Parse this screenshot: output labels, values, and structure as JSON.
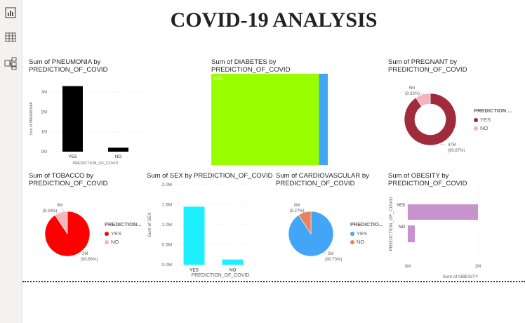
{
  "page": {
    "title": "COVID-19 ANALYSIS"
  },
  "nav": {
    "items": [
      {
        "icon": "report-icon"
      },
      {
        "icon": "table-icon"
      },
      {
        "icon": "model-icon"
      }
    ]
  },
  "colors": {
    "black": "#000000",
    "lime": "#99ff00",
    "blue": "#42a5f5",
    "maroon": "#a02b3a",
    "pink": "#f4b6bc",
    "red": "#ff0000",
    "cyan": "#1ef0ff",
    "orange": "#e8825f",
    "purple": "#c693cc"
  },
  "pneumonia": {
    "title_l1": "Sum of PNEUMONIA by",
    "title_l2": "PREDICTION_OF_COVID",
    "ylabel": "Sum of PNEUMONIA",
    "xlabel": "PREDICTION_OF_COVID"
  },
  "diabetes": {
    "title_l1": "Sum of DIABETES by",
    "title_l2": "PREDICTION_OF_COVID",
    "yes_label": "YES"
  },
  "pregnant": {
    "title_l1": "Sum of PREGNANT by",
    "title_l2": "PREDICTION_OF_COVID",
    "legend_title": "PREDICTION ...",
    "legend_yes": "YES",
    "legend_no": "NO",
    "lbl_big_1": "47M",
    "lbl_big_2": "(90.67%)",
    "lbl_small_1": "5M",
    "lbl_small_2": "(9.33%)"
  },
  "tobacco": {
    "title_l1": "Sum of TOBACCO by",
    "title_l2": "PREDICTION_OF_COVID",
    "legend_title": "PREDICTION...",
    "legend_yes": "YES",
    "legend_no": "NO",
    "lbl_big_1": "2M",
    "lbl_big_2": "(90.66%)",
    "lbl_small_1": "0M",
    "lbl_small_2": "(9.34%)"
  },
  "sex": {
    "title_l1": "Sum of SEX by PREDICTION_OF_COVID",
    "ylabel": "Sum of SEX",
    "xlabel": "PREDICTION_OF_COVID"
  },
  "cardio": {
    "title_l1": "Sum of CARDIOVASCULAR by",
    "title_l2": "PREDICTION_OF_COVID",
    "legend_title": "PREDICTIO...",
    "legend_yes": "YES",
    "legend_no": "NO",
    "lbl_big_1": "2M",
    "lbl_big_2": "(90.73%)",
    "lbl_small_1": "0M",
    "lbl_small_2": "(9.27%)"
  },
  "obesity": {
    "title_l1": "Sum of OBESITY by PREDICTION_OF_COVID",
    "ylabel": "PREDICTION_OF_COVID",
    "xlabel": "Sum of OBESITY"
  },
  "chart_data": [
    {
      "id": "pneumonia",
      "type": "bar",
      "title": "Sum of PNEUMONIA by PREDICTION_OF_COVID",
      "categories": [
        "YES",
        "NO"
      ],
      "values": [
        3.3,
        0.2
      ],
      "yticks": [
        "0M",
        "1M",
        "2M",
        "3M"
      ],
      "ylim": [
        0,
        3.5
      ],
      "xlabel": "PREDICTION_OF_COVID",
      "ylabel": "Sum of PNEUMONIA"
    },
    {
      "id": "diabetes",
      "type": "treemap",
      "title": "Sum of DIABETES by PREDICTION_OF_COVID",
      "categories": [
        "YES",
        "NO"
      ],
      "values": [
        92.5,
        7.5
      ]
    },
    {
      "id": "pregnant",
      "type": "pie",
      "donut": true,
      "title": "Sum of PREGNANT by PREDICTION_OF_COVID",
      "categories": [
        "YES",
        "NO"
      ],
      "values": [
        47,
        5
      ],
      "percent": [
        90.67,
        9.33
      ]
    },
    {
      "id": "tobacco",
      "type": "pie",
      "title": "Sum of TOBACCO by PREDICTION_OF_COVID",
      "categories": [
        "YES",
        "NO"
      ],
      "values": [
        2,
        0
      ],
      "percent": [
        90.66,
        9.34
      ]
    },
    {
      "id": "sex",
      "type": "bar",
      "title": "Sum of SEX by PREDICTION_OF_COVID",
      "categories": [
        "YES",
        "NO"
      ],
      "values": [
        1.45,
        0.13
      ],
      "yticks": [
        "0.0M",
        "0.5M",
        "1.0M",
        "1.5M",
        "2.0M"
      ],
      "ylim": [
        0,
        2.0
      ],
      "xlabel": "PREDICTION_OF_COVID",
      "ylabel": "Sum of SEX"
    },
    {
      "id": "cardio",
      "type": "pie",
      "title": "Sum of CARDIOVASCULAR by PREDICTION_OF_COVID",
      "categories": [
        "YES",
        "NO"
      ],
      "values": [
        2,
        0
      ],
      "percent": [
        90.73,
        9.27
      ]
    },
    {
      "id": "obesity",
      "type": "hbar",
      "title": "Sum of OBESITY by PREDICTION_OF_COVID",
      "categories": [
        "YES",
        "NO"
      ],
      "values": [
        2.0,
        0.2
      ],
      "xticks": [
        "0M",
        "2M"
      ],
      "xlim": [
        0,
        2
      ],
      "xlabel": "Sum of OBESITY",
      "ylabel": "PREDICTION_OF_COVID"
    }
  ]
}
